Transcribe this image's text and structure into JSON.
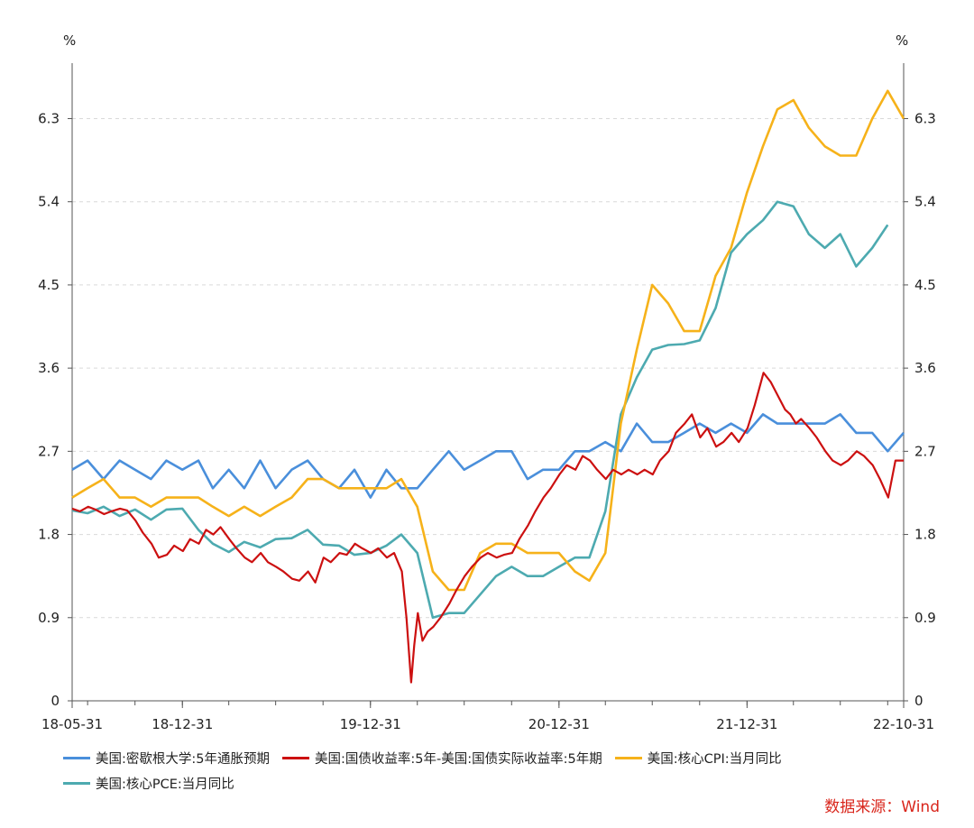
{
  "chart_data": {
    "type": "line",
    "y_unit_left": "%",
    "y_unit_right": "%",
    "ylim": [
      0,
      6.9
    ],
    "y_ticks": [
      0,
      0.9,
      1.8,
      2.7,
      3.6,
      4.5,
      5.4,
      6.3
    ],
    "x_range": [
      "2018-05-31",
      "2022-10-31"
    ],
    "x_tick_labels": [
      "18-05-31",
      "18-12-31",
      "19-12-31",
      "20-12-31",
      "21-12-31",
      "22-10-31"
    ],
    "x_tick_dates": [
      "2018-05-31",
      "2018-12-31",
      "2019-12-31",
      "2020-12-31",
      "2021-12-31",
      "2022-10-31"
    ],
    "grid": "horizontal dashed",
    "legend_position": "bottom",
    "source": "数据来源：Wind",
    "series": [
      {
        "name": "美国:密歇根大学:5年通胀预期",
        "color": "#4a8fdb",
        "x": [
          "2018-05",
          "2018-06",
          "2018-07",
          "2018-08",
          "2018-09",
          "2018-10",
          "2018-11",
          "2018-12",
          "2019-01",
          "2019-02",
          "2019-03",
          "2019-04",
          "2019-05",
          "2019-06",
          "2019-07",
          "2019-08",
          "2019-09",
          "2019-10",
          "2019-11",
          "2019-12",
          "2020-01",
          "2020-02",
          "2020-03",
          "2020-04",
          "2020-05",
          "2020-06",
          "2020-07",
          "2020-08",
          "2020-09",
          "2020-10",
          "2020-11",
          "2020-12",
          "2021-01",
          "2021-02",
          "2021-03",
          "2021-04",
          "2021-05",
          "2021-06",
          "2021-07",
          "2021-08",
          "2021-09",
          "2021-10",
          "2021-11",
          "2021-12",
          "2022-01",
          "2022-02",
          "2022-03",
          "2022-04",
          "2022-05",
          "2022-06",
          "2022-07",
          "2022-08",
          "2022-09",
          "2022-10"
        ],
        "values": [
          2.5,
          2.6,
          2.4,
          2.6,
          2.5,
          2.4,
          2.6,
          2.5,
          2.6,
          2.3,
          2.5,
          2.3,
          2.6,
          2.3,
          2.5,
          2.6,
          2.4,
          2.3,
          2.5,
          2.2,
          2.5,
          2.3,
          2.3,
          2.5,
          2.7,
          2.5,
          2.6,
          2.7,
          2.7,
          2.4,
          2.5,
          2.5,
          2.7,
          2.7,
          2.8,
          2.7,
          3.0,
          2.8,
          2.8,
          2.9,
          3.0,
          2.9,
          3.0,
          2.9,
          3.1,
          3.0,
          3.0,
          3.0,
          3.0,
          3.1,
          2.9,
          2.9,
          2.7,
          2.9
        ]
      },
      {
        "name": "美国:国债收益率:5年-美国:国债实际收益率:5年期",
        "color": "#cc1010",
        "x": [
          "2018-05-31",
          "2018-06-15",
          "2018-07-01",
          "2018-07-15",
          "2018-08-01",
          "2018-08-15",
          "2018-09-01",
          "2018-09-15",
          "2018-10-01",
          "2018-10-15",
          "2018-11-01",
          "2018-11-15",
          "2018-12-01",
          "2018-12-15",
          "2019-01-01",
          "2019-01-15",
          "2019-02-01",
          "2019-02-15",
          "2019-03-01",
          "2019-03-15",
          "2019-04-01",
          "2019-04-15",
          "2019-05-01",
          "2019-05-15",
          "2019-06-01",
          "2019-06-15",
          "2019-07-01",
          "2019-07-15",
          "2019-08-01",
          "2019-08-15",
          "2019-09-01",
          "2019-09-15",
          "2019-10-01",
          "2019-10-15",
          "2019-11-01",
          "2019-11-15",
          "2019-12-01",
          "2019-12-15",
          "2020-01-01",
          "2020-01-15",
          "2020-02-01",
          "2020-02-15",
          "2020-03-01",
          "2020-03-10",
          "2020-03-19",
          "2020-03-25",
          "2020-04-01",
          "2020-04-10",
          "2020-04-20",
          "2020-05-01",
          "2020-05-15",
          "2020-06-01",
          "2020-06-15",
          "2020-07-01",
          "2020-07-15",
          "2020-08-01",
          "2020-08-15",
          "2020-09-01",
          "2020-09-15",
          "2020-10-01",
          "2020-10-15",
          "2020-11-01",
          "2020-11-15",
          "2020-12-01",
          "2020-12-15",
          "2021-01-01",
          "2021-01-15",
          "2021-02-01",
          "2021-02-15",
          "2021-03-01",
          "2021-03-15",
          "2021-04-01",
          "2021-04-15",
          "2021-05-01",
          "2021-05-15",
          "2021-06-01",
          "2021-06-15",
          "2021-07-01",
          "2021-07-15",
          "2021-08-01",
          "2021-08-15",
          "2021-09-01",
          "2021-09-15",
          "2021-10-01",
          "2021-10-15",
          "2021-11-01",
          "2021-11-15",
          "2021-12-01",
          "2021-12-15",
          "2022-01-01",
          "2022-01-15",
          "2022-02-01",
          "2022-02-15",
          "2022-03-01",
          "2022-03-15",
          "2022-03-25",
          "2022-04-05",
          "2022-04-15",
          "2022-05-01",
          "2022-05-15",
          "2022-06-01",
          "2022-06-15",
          "2022-07-01",
          "2022-07-15",
          "2022-08-01",
          "2022-08-15",
          "2022-09-01",
          "2022-09-15",
          "2022-10-01",
          "2022-10-15",
          "2022-10-31"
        ],
        "values": [
          2.08,
          2.05,
          2.1,
          2.07,
          2.02,
          2.05,
          2.08,
          2.06,
          1.95,
          1.82,
          1.7,
          1.55,
          1.58,
          1.68,
          1.62,
          1.75,
          1.7,
          1.85,
          1.8,
          1.88,
          1.75,
          1.65,
          1.55,
          1.5,
          1.6,
          1.5,
          1.45,
          1.4,
          1.32,
          1.3,
          1.4,
          1.28,
          1.55,
          1.5,
          1.6,
          1.58,
          1.7,
          1.65,
          1.6,
          1.65,
          1.55,
          1.6,
          1.4,
          0.9,
          0.2,
          0.6,
          0.95,
          0.65,
          0.75,
          0.8,
          0.9,
          1.05,
          1.2,
          1.35,
          1.45,
          1.55,
          1.6,
          1.55,
          1.58,
          1.6,
          1.75,
          1.9,
          2.05,
          2.2,
          2.3,
          2.45,
          2.55,
          2.5,
          2.65,
          2.6,
          2.5,
          2.4,
          2.5,
          2.45,
          2.5,
          2.45,
          2.5,
          2.45,
          2.6,
          2.7,
          2.9,
          3.0,
          3.1,
          2.85,
          2.95,
          2.75,
          2.8,
          2.9,
          2.8,
          2.95,
          3.2,
          3.55,
          3.45,
          3.3,
          3.15,
          3.1,
          3.0,
          3.05,
          2.95,
          2.85,
          2.7,
          2.6,
          2.55,
          2.6,
          2.7,
          2.65,
          2.55,
          2.4,
          2.2,
          2.6,
          2.6
        ]
      },
      {
        "name": "美国:核心CPI:当月同比",
        "color": "#f6b21a",
        "x": [
          "2018-05",
          "2018-06",
          "2018-07",
          "2018-08",
          "2018-09",
          "2018-10",
          "2018-11",
          "2018-12",
          "2019-01",
          "2019-02",
          "2019-03",
          "2019-04",
          "2019-05",
          "2019-06",
          "2019-07",
          "2019-08",
          "2019-09",
          "2019-10",
          "2019-11",
          "2019-12",
          "2020-01",
          "2020-02",
          "2020-03",
          "2020-04",
          "2020-05",
          "2020-06",
          "2020-07",
          "2020-08",
          "2020-09",
          "2020-10",
          "2020-11",
          "2020-12",
          "2021-01",
          "2021-02",
          "2021-03",
          "2021-04",
          "2021-05",
          "2021-06",
          "2021-07",
          "2021-08",
          "2021-09",
          "2021-10",
          "2021-11",
          "2021-12",
          "2022-01",
          "2022-02",
          "2022-03",
          "2022-04",
          "2022-05",
          "2022-06",
          "2022-07",
          "2022-08",
          "2022-09",
          "2022-10"
        ],
        "values": [
          2.2,
          2.3,
          2.4,
          2.2,
          2.2,
          2.1,
          2.2,
          2.2,
          2.2,
          2.1,
          2.0,
          2.1,
          2.0,
          2.1,
          2.2,
          2.4,
          2.4,
          2.3,
          2.3,
          2.3,
          2.3,
          2.4,
          2.1,
          1.4,
          1.2,
          1.2,
          1.6,
          1.7,
          1.7,
          1.6,
          1.6,
          1.6,
          1.4,
          1.3,
          1.6,
          3.0,
          3.8,
          4.5,
          4.3,
          4.0,
          4.0,
          4.6,
          4.9,
          5.5,
          6.0,
          6.4,
          6.5,
          6.2,
          6.0,
          5.9,
          5.9,
          6.3,
          6.6,
          6.3
        ]
      },
      {
        "name": "美国:核心PCE:当月同比",
        "color": "#4daab0",
        "x": [
          "2018-05",
          "2018-06",
          "2018-07",
          "2018-08",
          "2018-09",
          "2018-10",
          "2018-11",
          "2018-12",
          "2019-01",
          "2019-02",
          "2019-03",
          "2019-04",
          "2019-05",
          "2019-06",
          "2019-07",
          "2019-08",
          "2019-09",
          "2019-10",
          "2019-11",
          "2019-12",
          "2020-01",
          "2020-02",
          "2020-03",
          "2020-04",
          "2020-05",
          "2020-06",
          "2020-07",
          "2020-08",
          "2020-09",
          "2020-10",
          "2020-11",
          "2020-12",
          "2021-01",
          "2021-02",
          "2021-03",
          "2021-04",
          "2021-05",
          "2021-06",
          "2021-07",
          "2021-08",
          "2021-09",
          "2021-10",
          "2021-11",
          "2021-12",
          "2022-01",
          "2022-02",
          "2022-03",
          "2022-04",
          "2022-05",
          "2022-06",
          "2022-07",
          "2022-08",
          "2022-09"
        ],
        "values": [
          2.06,
          2.03,
          2.1,
          2.0,
          2.07,
          1.96,
          2.07,
          2.08,
          1.85,
          1.7,
          1.61,
          1.72,
          1.66,
          1.75,
          1.76,
          1.85,
          1.69,
          1.68,
          1.58,
          1.6,
          1.68,
          1.8,
          1.6,
          0.9,
          0.95,
          0.95,
          1.15,
          1.35,
          1.45,
          1.35,
          1.35,
          1.45,
          1.55,
          1.55,
          2.05,
          3.1,
          3.5,
          3.8,
          3.85,
          3.86,
          3.9,
          4.25,
          4.85,
          5.05,
          5.2,
          5.4,
          5.35,
          5.05,
          4.9,
          5.05,
          4.7,
          4.9,
          5.15
        ]
      }
    ]
  }
}
